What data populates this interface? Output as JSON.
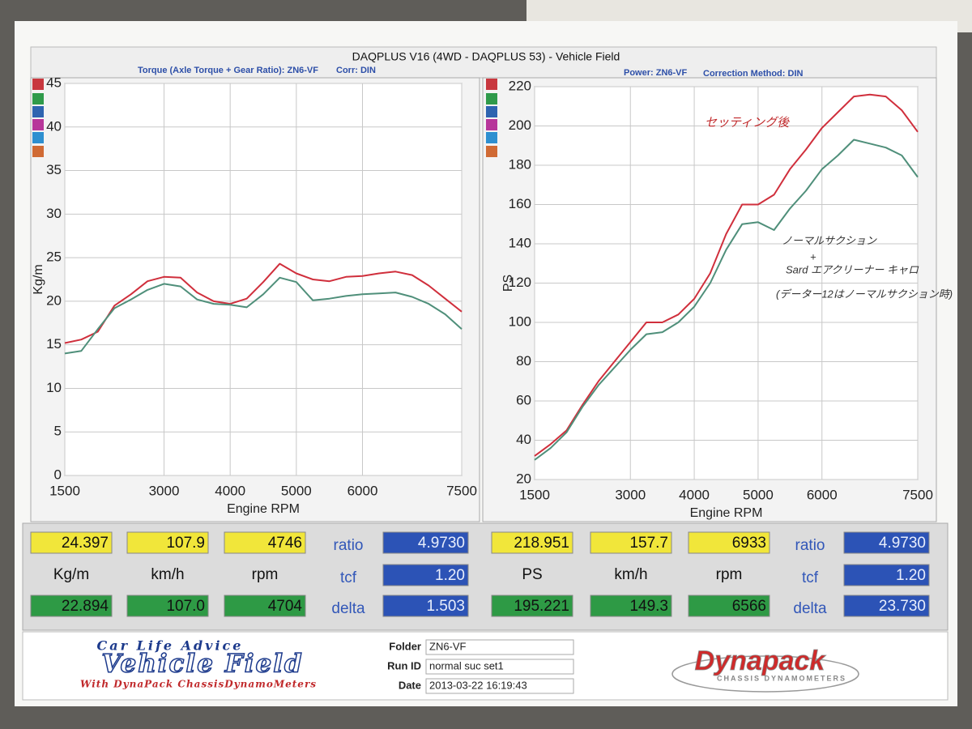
{
  "header": {
    "title": "DAQPLUS V16 (4WD - DAQPLUS 53) - Vehicle Field",
    "left_info": "Torque (Axle Torque + Gear Ratio): ZN6-VF",
    "left_corr": "Corr: DIN",
    "right_info": "Power: ZN6-VF",
    "right_corr": "Correction Method: DIN"
  },
  "chart_data": [
    {
      "type": "line",
      "x_label": "Engine RPM",
      "y_label": "Kg/m",
      "x": [
        1500,
        1750,
        2000,
        2250,
        2500,
        2750,
        3000,
        3250,
        3500,
        3750,
        4000,
        4250,
        4500,
        4750,
        5000,
        5250,
        5500,
        5750,
        6000,
        6250,
        6500,
        6750,
        7000,
        7250,
        7500
      ],
      "xlim": [
        1500,
        7500
      ],
      "xticks": [
        1500,
        3000,
        4000,
        5000,
        6000,
        7500
      ],
      "ylim": [
        0,
        45
      ],
      "yticks": [
        0,
        5,
        10,
        15,
        20,
        25,
        30,
        35,
        40,
        45
      ],
      "grid": true,
      "series": [
        {
          "color": "#d02f3c",
          "values": [
            15.2,
            15.6,
            16.5,
            19.5,
            20.8,
            22.3,
            22.8,
            22.7,
            21.0,
            20.0,
            19.7,
            20.3,
            22.2,
            24.3,
            23.2,
            22.5,
            22.3,
            22.8,
            22.9,
            23.2,
            23.4,
            23.0,
            21.8,
            20.3,
            18.8
          ]
        },
        {
          "color": "#4f8f7a",
          "values": [
            14.0,
            14.3,
            16.8,
            19.2,
            20.2,
            21.3,
            22.0,
            21.7,
            20.2,
            19.7,
            19.6,
            19.3,
            20.8,
            22.7,
            22.2,
            20.1,
            20.3,
            20.6,
            20.8,
            20.9,
            21.0,
            20.5,
            19.7,
            18.5,
            16.8
          ]
        }
      ]
    },
    {
      "type": "line",
      "x_label": "Engine RPM",
      "y_label": "PS",
      "x": [
        1500,
        1750,
        2000,
        2250,
        2500,
        2750,
        3000,
        3250,
        3500,
        3750,
        4000,
        4250,
        4500,
        4750,
        5000,
        5250,
        5500,
        5750,
        6000,
        6250,
        6500,
        6750,
        7000,
        7250,
        7500
      ],
      "xlim": [
        1500,
        7500
      ],
      "xticks": [
        1500,
        3000,
        4000,
        5000,
        6000,
        7500
      ],
      "ylim": [
        20,
        220
      ],
      "yticks": [
        20,
        40,
        60,
        80,
        100,
        120,
        140,
        160,
        180,
        200,
        220
      ],
      "grid": true,
      "series": [
        {
          "color": "#d02f3c",
          "values": [
            32,
            38,
            45,
            58,
            70,
            80,
            90,
            100,
            100,
            104,
            112,
            125,
            145,
            160,
            160,
            165,
            178,
            188,
            199,
            207,
            215,
            216,
            215,
            208,
            197
          ]
        },
        {
          "color": "#4f8f7a",
          "values": [
            30,
            36,
            44,
            57,
            68,
            77,
            86,
            94,
            95,
            100,
            108,
            120,
            137,
            150,
            151,
            147,
            158,
            167,
            178,
            185,
            193,
            191,
            189,
            185,
            174
          ]
        }
      ],
      "annotations": [
        "セッティング後",
        "ノーマルサクション",
        "+",
        "Sard エアクリーナー キャロ",
        "(データー12はノーマルサクション時)"
      ]
    }
  ],
  "readouts": {
    "left": {
      "rows": [
        [
          "24.397",
          "107.9",
          "4746",
          "ratio",
          "4.9730"
        ],
        [
          "Kg/m",
          "km/h",
          "rpm",
          "tcf",
          "1.20"
        ],
        [
          "22.894",
          "107.0",
          "4704",
          "delta",
          "1.503"
        ]
      ]
    },
    "right": {
      "rows": [
        [
          "218.951",
          "157.7",
          "6933",
          "ratio",
          "4.9730"
        ],
        [
          "PS",
          "km/h",
          "rpm",
          "tcf",
          "1.20"
        ],
        [
          "195.221",
          "149.3",
          "6566",
          "delta",
          "23.730"
        ]
      ]
    }
  },
  "footer": {
    "brand_top": "Car Life Advice",
    "brand": "Vehicle Field",
    "brand_bottom": "With DynaPack ChassisDynamoMeters",
    "folder_label": "Folder",
    "folder": "ZN6-VF",
    "run_label": "Run ID",
    "run": "normal suc set1",
    "date_label": "Date",
    "date": "2013-03-22 16:19:43",
    "logo": "Dynapack",
    "logo_sub": "CHASSIS DYNAMOMETERS"
  }
}
